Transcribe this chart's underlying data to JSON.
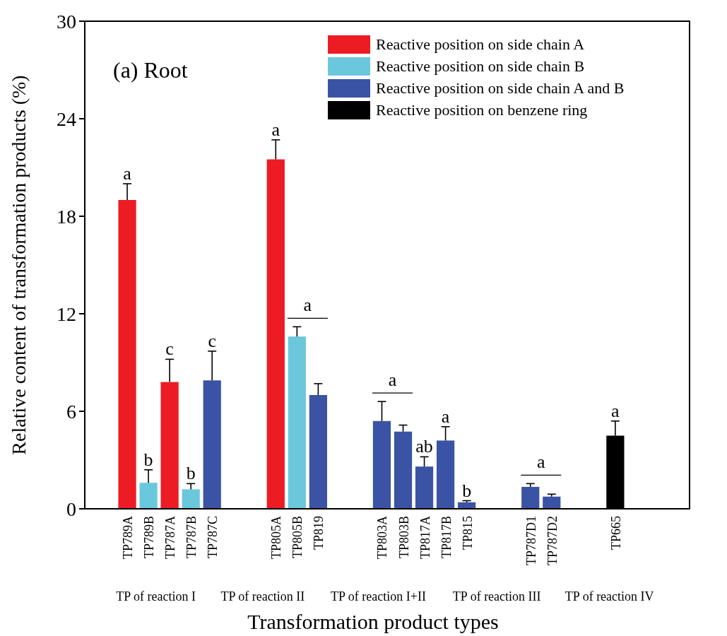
{
  "chart_data": {
    "type": "bar",
    "title": "(a) Root",
    "xlabel": "Transformation product types",
    "ylabel": "Relative content of transformation products (%)",
    "categories": [
      "TP789A",
      "TP789B",
      "TP787A",
      "TP787B",
      "TP787C",
      null,
      null,
      "TP805A",
      "TP805B",
      "TP819",
      null,
      null,
      "TP803A",
      "TP803B",
      "TP817A",
      "TP817B",
      "TP815",
      null,
      null,
      "TP787D1",
      "TP787D2",
      null,
      null,
      "TP665"
    ],
    "ylim": [
      0,
      30
    ],
    "yticks": [
      0,
      6,
      12,
      18,
      24,
      30
    ],
    "grid": false,
    "legend": "top right",
    "series": [
      {
        "name": "Reactive position on side chain A",
        "color": "#ed1c24",
        "values": [
          19.0,
          null,
          7.8,
          null,
          null,
          null,
          null,
          21.5,
          null,
          null,
          null,
          null,
          null,
          null,
          null,
          null,
          null,
          null,
          null,
          null,
          null,
          null,
          null,
          null
        ],
        "errors": [
          1.0,
          null,
          1.4,
          null,
          null,
          null,
          null,
          1.2,
          null,
          null,
          null,
          null,
          null,
          null,
          null,
          null,
          null,
          null,
          null,
          null,
          null,
          null,
          null,
          null
        ]
      },
      {
        "name": "Reactive position on side chain B",
        "color": "#6bc8dc",
        "values": [
          null,
          1.6,
          null,
          1.2,
          null,
          null,
          null,
          null,
          10.6,
          null,
          null,
          null,
          null,
          null,
          null,
          null,
          null,
          null,
          null,
          null,
          null,
          null,
          null,
          null
        ],
        "errors": [
          null,
          0.8,
          null,
          0.35,
          null,
          null,
          null,
          null,
          0.6,
          null,
          null,
          null,
          null,
          null,
          null,
          null,
          null,
          null,
          null,
          null,
          null,
          null,
          null,
          null
        ]
      },
      {
        "name": "Reactive position on side chain A and B",
        "color": "#3a53a4",
        "values": [
          null,
          null,
          null,
          null,
          7.9,
          null,
          null,
          null,
          null,
          7.0,
          null,
          null,
          5.4,
          4.75,
          2.6,
          4.2,
          0.4,
          null,
          null,
          1.35,
          0.75,
          null,
          null,
          null
        ],
        "errors": [
          null,
          null,
          null,
          null,
          1.8,
          null,
          null,
          null,
          null,
          0.7,
          null,
          null,
          1.2,
          0.4,
          0.6,
          0.85,
          0.1,
          null,
          null,
          0.2,
          0.15,
          null,
          null,
          null
        ]
      },
      {
        "name": "Reactive position on benzene ring",
        "color": "#000000",
        "values": [
          null,
          null,
          null,
          null,
          null,
          null,
          null,
          null,
          null,
          null,
          null,
          null,
          null,
          null,
          null,
          null,
          null,
          null,
          null,
          null,
          null,
          null,
          null,
          4.5
        ],
        "errors": [
          null,
          null,
          null,
          null,
          null,
          null,
          null,
          null,
          null,
          null,
          null,
          null,
          null,
          null,
          null,
          null,
          null,
          null,
          null,
          null,
          null,
          null,
          null,
          0.9
        ]
      }
    ],
    "annotations": [
      {
        "text": "a",
        "x": "TP789A",
        "y": 20.0
      },
      {
        "text": "b",
        "x": "TP789B",
        "y": 2.4
      },
      {
        "text": "c",
        "x": "TP787A",
        "y": 9.2
      },
      {
        "text": "b",
        "x": "TP787B",
        "y": 1.55
      },
      {
        "text": "c",
        "x": "TP787C",
        "y": 9.7
      },
      {
        "text": "a",
        "x": "TP805A",
        "y": 22.7
      },
      "a",
      "a",
      {
        "text": "ab",
        "x": "TP817A",
        "y": 3.2
      },
      {
        "text": "a",
        "x": "TP817B",
        "y": 5.05
      },
      {
        "text": "b",
        "x": "TP815",
        "y": 0.5
      },
      "a",
      {
        "text": "a",
        "x": "TP665",
        "y": 5.4
      },
      "TP of reaction I",
      "TP of reaction II",
      "TP of reaction I+II",
      "TP of reaction III",
      "TP of reaction IV"
    ]
  }
}
